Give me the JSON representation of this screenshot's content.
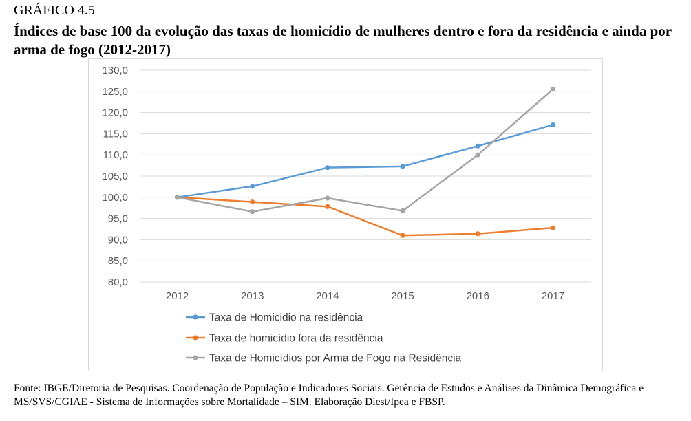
{
  "caption": {
    "label": "GRÁFICO 4.5",
    "title": "Índices de base 100 da evolução das taxas de homicídio de mulheres dentro e fora da residência e ainda por arma de fogo (2012-2017)"
  },
  "source": "Fonte: IBGE/Diretoria de Pesquisas. Coordenação de População e Indicadores Sociais. Gerência de Estudos e Análises da Dinâmica Demográfica e MS/SVS/CGIAE - Sistema de Informações sobre Mortalidade – SIM. Elaboração Diest/Ipea e FBSP.",
  "chart_data": {
    "type": "line",
    "title": "",
    "xlabel": "",
    "ylabel": "",
    "categories": [
      "2012",
      "2013",
      "2014",
      "2015",
      "2016",
      "2017"
    ],
    "ylim": [
      80,
      130
    ],
    "yticks": [
      "80,0",
      "85,0",
      "90,0",
      "95,0",
      "100,0",
      "105,0",
      "110,0",
      "115,0",
      "120,0",
      "125,0",
      "130,0"
    ],
    "grid": true,
    "legend_position": "bottom",
    "series": [
      {
        "name": "Taxa de Homicidio na residência",
        "color": "#5b9bd5",
        "values": [
          100.0,
          102.6,
          107.0,
          107.3,
          112.1,
          117.1
        ]
      },
      {
        "name": "Taxa de homicídio fora da residência",
        "color": "#ed7d31",
        "values": [
          100.0,
          98.9,
          97.8,
          91.0,
          91.4,
          92.8
        ]
      },
      {
        "name": "Taxa de Homicídios por Arma de Fogo na Residência",
        "color": "#a5a5a5",
        "values": [
          100.0,
          96.6,
          99.8,
          96.8,
          110.0,
          125.5
        ]
      }
    ]
  }
}
